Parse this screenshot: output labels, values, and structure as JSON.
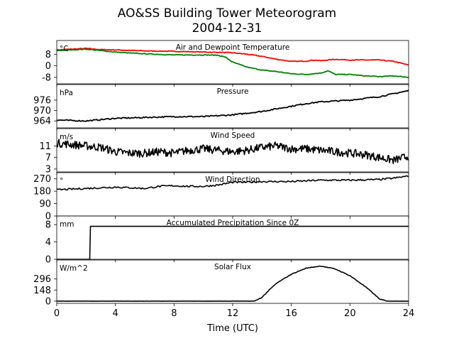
{
  "figure": {
    "title": "AO&SS Building Tower Meteorogram",
    "subtitle": "2004-12-31",
    "xlabel": "Time (UTC)"
  },
  "chart_data": [
    {
      "type": "line",
      "title": "Air and Dewpoint Temperature",
      "unit_label": "°C",
      "ylim": [
        -12.5,
        17.5
      ],
      "yticks": [
        "8",
        "0",
        "-8"
      ],
      "ytick_values": [
        8,
        0,
        -8
      ],
      "series": [
        {
          "color": "#ff0000",
          "x": [
            0,
            1,
            2,
            3,
            4,
            6,
            8,
            10,
            11,
            12,
            13,
            14,
            15,
            16,
            17,
            17.5,
            18,
            18.5,
            19,
            20,
            21,
            22,
            23,
            24
          ],
          "values": [
            11,
            11.5,
            12,
            11.2,
            11,
            10.3,
            10,
            9.5,
            9.3,
            9,
            8,
            6.5,
            4.5,
            3,
            3.2,
            4,
            3.5,
            4,
            4.5,
            4,
            4,
            4,
            3,
            0.5
          ]
        },
        {
          "color": "#008000",
          "x": [
            0,
            1,
            2,
            3,
            4,
            5,
            6,
            8,
            10,
            11,
            11.5,
            12,
            13,
            14,
            15,
            16,
            17,
            18,
            18.5,
            19,
            20,
            21,
            22,
            23,
            24
          ],
          "values": [
            10.5,
            11,
            11.5,
            10.5,
            9.5,
            8.8,
            8.3,
            7.5,
            7.5,
            7.3,
            6,
            2.5,
            -1,
            -3,
            -4,
            -5.5,
            -6,
            -5,
            -3.5,
            -6,
            -6,
            -7,
            -7.5,
            -7,
            -8
          ]
        }
      ]
    },
    {
      "type": "line",
      "title": "Pressure",
      "unit_label": "hPa",
      "ylim": [
        960,
        985
      ],
      "yticks": [
        "976",
        "970",
        "964"
      ],
      "ytick_values": [
        976,
        970,
        964
      ],
      "series": [
        {
          "color": "#000000",
          "x": [
            0,
            2,
            4,
            6,
            8,
            10,
            12,
            14,
            16,
            17,
            18,
            20,
            22,
            24
          ],
          "values": [
            964.5,
            964,
            965.5,
            966,
            966.5,
            966.5,
            967.5,
            969.5,
            972.5,
            974,
            975,
            976,
            978,
            981.5
          ]
        }
      ]
    },
    {
      "type": "line",
      "title": "Wind Speed",
      "unit_label": "m/s",
      "ylim": [
        2,
        17
      ],
      "yticks": [
        "11",
        "7",
        "3"
      ],
      "ytick_values": [
        11,
        7,
        3
      ],
      "series": [
        {
          "color": "#000000",
          "x": [
            0,
            1,
            2,
            3,
            4,
            5,
            6,
            7,
            8,
            9,
            10,
            11,
            12,
            13,
            14,
            15,
            16,
            17,
            18,
            19,
            20,
            21,
            22,
            23,
            24
          ],
          "values": [
            12,
            11.5,
            11,
            10.5,
            9,
            8.5,
            8.5,
            9,
            8.5,
            9.5,
            10,
            9.5,
            9,
            9.5,
            10.5,
            11,
            10,
            10,
            9.5,
            9,
            8.5,
            8,
            7,
            6,
            7.5
          ]
        }
      ]
    },
    {
      "type": "line",
      "title": "Wind Direction",
      "unit_label": "°",
      "ylim": [
        0,
        315
      ],
      "yticks": [
        "270",
        "180",
        "90",
        "0"
      ],
      "ytick_values": [
        270,
        180,
        90,
        0
      ],
      "series": [
        {
          "color": "#000000",
          "x": [
            0,
            1,
            2,
            3,
            4,
            5,
            6,
            7,
            8,
            9,
            10,
            11,
            12,
            13,
            14,
            16,
            18,
            20,
            22,
            23,
            24
          ],
          "values": [
            190,
            195,
            200,
            205,
            210,
            205,
            200,
            215,
            220,
            215,
            215,
            225,
            245,
            245,
            250,
            250,
            260,
            260,
            265,
            275,
            290
          ]
        }
      ]
    },
    {
      "type": "line",
      "title": "Accumulated Precipitation Since 0Z",
      "unit_label": "mm",
      "ylim": [
        0,
        10
      ],
      "yticks": [
        "8",
        "4",
        "0"
      ],
      "ytick_values": [
        8,
        4,
        0
      ],
      "series": [
        {
          "color": "#000000",
          "x": [
            0,
            2.25,
            2.3,
            24
          ],
          "values": [
            0,
            0,
            7.6,
            7.6
          ]
        }
      ]
    },
    {
      "type": "line",
      "title": "Solar Flux",
      "unit_label": "W/m^2",
      "ylim": [
        -30,
        550
      ],
      "yticks": [
        "296",
        "148",
        "0"
      ],
      "ytick_values": [
        296,
        148,
        0
      ],
      "series": [
        {
          "color": "#000000",
          "x": [
            0,
            13.5,
            14,
            14.5,
            15,
            16,
            17,
            18,
            19,
            20,
            21,
            21.5,
            22,
            22.5,
            24
          ],
          "values": [
            0,
            0,
            50,
            150,
            240,
            360,
            440,
            470,
            430,
            340,
            200,
            120,
            30,
            0,
            0
          ]
        }
      ]
    }
  ],
  "xaxis": {
    "xlim": [
      0,
      24
    ],
    "ticks": [
      "0",
      "4",
      "8",
      "12",
      "16",
      "20",
      "24"
    ],
    "tick_values": [
      0,
      4,
      8,
      12,
      16,
      20,
      24
    ]
  }
}
